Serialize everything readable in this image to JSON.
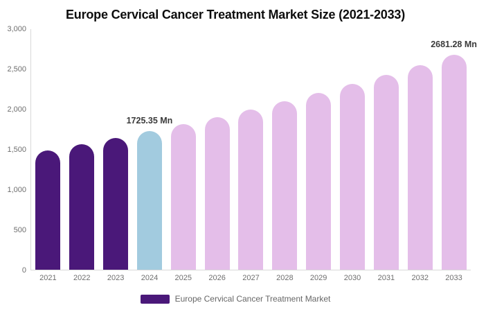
{
  "title": "Europe Cervical Cancer Treatment Market Size (2021-2033)",
  "colors": {
    "historical_bar": "#4A1879",
    "base_year_bar": "#A2CBDF",
    "forecast_bar": "#E4BEE9",
    "axis_line": "#D8D8D8",
    "tick_label_text": "#6E6E6E",
    "data_label_text": "#3A3A3A",
    "legend_text": "#666666",
    "title_text": "#0D0D0D"
  },
  "chart_data": {
    "type": "bar",
    "title": "Europe Cervical Cancer Treatment Market Size (2021-2033)",
    "xlabel": "",
    "ylabel": "",
    "unit": "Mn",
    "ylim": [
      0,
      3000
    ],
    "y_ticks": [
      "0",
      "500",
      "1,000",
      "1,500",
      "2,000",
      "2,500",
      "3,000"
    ],
    "grid": false,
    "legend_position": "bottom",
    "categories": [
      "2021",
      "2022",
      "2023",
      "2024",
      "2025",
      "2026",
      "2027",
      "2028",
      "2029",
      "2030",
      "2031",
      "2032",
      "2033"
    ],
    "series": [
      {
        "name": "Europe Cervical Cancer Treatment Market",
        "values": [
          1489,
          1564,
          1643,
          1725.35,
          1812,
          1903,
          1999,
          2099,
          2204,
          2315,
          2431,
          2553,
          2681.28
        ]
      }
    ],
    "bar_groups": [
      "historical_bar",
      "historical_bar",
      "historical_bar",
      "base_year_bar",
      "forecast_bar",
      "forecast_bar",
      "forecast_bar",
      "forecast_bar",
      "forecast_bar",
      "forecast_bar",
      "forecast_bar",
      "forecast_bar",
      "forecast_bar"
    ],
    "data_labels": {
      "2024": "1725.35 Mn",
      "2033": "2681.28 Mn"
    }
  },
  "legend": {
    "label": "Europe Cervical Cancer Treatment Market"
  }
}
